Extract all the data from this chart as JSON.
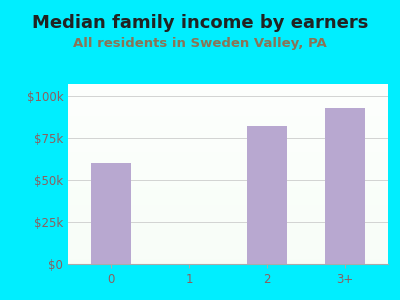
{
  "title": "Median family income by earners",
  "subtitle": "All residents in Sweden Valley, PA",
  "categories": [
    "0",
    "1",
    "2",
    "3+"
  ],
  "values": [
    60000,
    0,
    82000,
    93000
  ],
  "bar_color": "#b8a8d0",
  "outer_bg": "#00eeff",
  "title_color": "#222222",
  "subtitle_color": "#8B7355",
  "axis_label_color": "#8B6060",
  "yticks": [
    0,
    25000,
    50000,
    75000,
    100000
  ],
  "ytick_labels": [
    "$0",
    "$25k",
    "$50k",
    "$75k",
    "$100k"
  ],
  "ylim": [
    0,
    107000
  ],
  "title_fontsize": 13,
  "subtitle_fontsize": 9.5,
  "tick_fontsize": 8.5
}
